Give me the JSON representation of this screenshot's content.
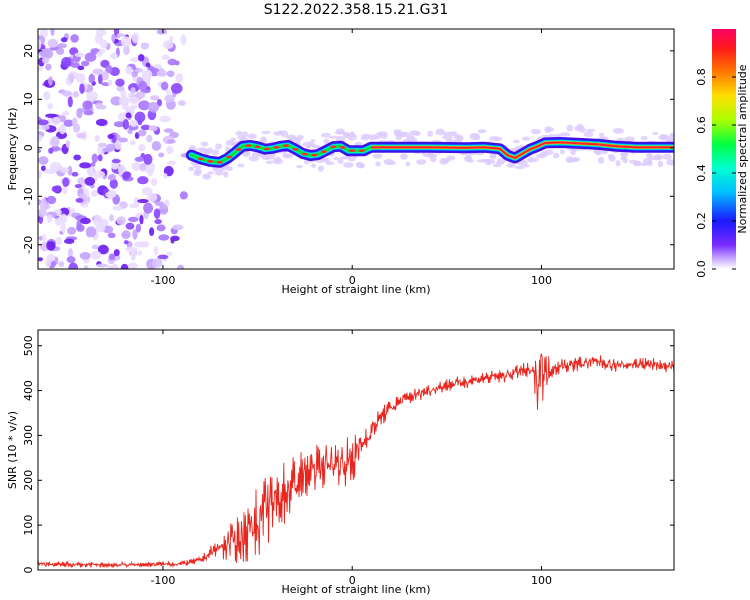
{
  "title": "S122.2022.358.15.21.G31",
  "chart_data": [
    {
      "type": "heatmap",
      "title": "S122.2022.358.15.21.G31",
      "xlabel": "Height of straight line (km)",
      "ylabel": "Frequency (Hz)",
      "xlim": [
        -166,
        170
      ],
      "ylim": [
        -25,
        24.5
      ],
      "x_ticks": [
        "-100",
        "0",
        "100"
      ],
      "x_tick_values": [
        -100,
        0,
        100
      ],
      "y_ticks": [
        "-20",
        "-10",
        "0",
        "10",
        "20"
      ],
      "y_tick_values": [
        -20,
        -10,
        0,
        10,
        20
      ],
      "colorbar": {
        "label": "Normalized spectral amplitude",
        "range": [
          0,
          1
        ],
        "ticks": [
          "0.0",
          "0.2",
          "0.4",
          "0.6",
          "0.8"
        ],
        "tick_values": [
          0.0,
          0.2,
          0.4,
          0.6,
          0.8
        ],
        "colormap": "gist_rainbow_r"
      },
      "noise_region_x": [
        -166,
        -85
      ],
      "ridge": {
        "x": [
          -85,
          -80,
          -75,
          -70,
          -66,
          -62,
          -58,
          -54,
          -50,
          -46,
          -42,
          -38,
          -34,
          -30,
          -26,
          -22,
          -18,
          -14,
          -10,
          -6,
          -2,
          2,
          6,
          10,
          20,
          40,
          60,
          70,
          78,
          82,
          86,
          90,
          94,
          98,
          102,
          110,
          120,
          130,
          140,
          150,
          160,
          170
        ],
        "y": [
          -1.5,
          -2.3,
          -2.8,
          -3.0,
          -2.2,
          -1.0,
          0.3,
          0.5,
          0.2,
          -0.3,
          -0.1,
          0.3,
          0.5,
          -0.3,
          -1.2,
          -1.6,
          -1.4,
          -0.6,
          0.2,
          0.3,
          -0.6,
          -0.6,
          -0.6,
          0.1,
          0.1,
          0.1,
          0.0,
          0.1,
          -0.2,
          -1.5,
          -2.1,
          -1.2,
          -0.3,
          0.3,
          1.0,
          1.1,
          0.9,
          0.7,
          0.3,
          0.1,
          0.1,
          0.1
        ],
        "peak_x_start": 10
      }
    },
    {
      "type": "line",
      "xlabel": "Height of straight line (km)",
      "ylabel": "SNR (10 * v/v)",
      "xlim": [
        -166,
        170
      ],
      "ylim": [
        0,
        535
      ],
      "x_ticks": [
        "-100",
        "0",
        "100"
      ],
      "x_tick_values": [
        -100,
        0,
        100
      ],
      "y_ticks": [
        "0",
        "100",
        "200",
        "300",
        "400",
        "500"
      ],
      "y_tick_values": [
        0,
        100,
        200,
        300,
        400,
        500
      ],
      "series": [
        {
          "color": "#e8261e",
          "x": [
            -166,
            -150,
            -130,
            -110,
            -100,
            -90,
            -80,
            -75,
            -70,
            -65,
            -60,
            -55,
            -50,
            -45,
            -40,
            -35,
            -30,
            -25,
            -20,
            -15,
            -10,
            -5,
            0,
            5,
            10,
            15,
            20,
            25,
            30,
            40,
            50,
            60,
            70,
            80,
            90,
            95,
            98,
            100,
            102,
            105,
            110,
            120,
            130,
            140,
            150,
            160,
            170
          ],
          "y": [
            13,
            12,
            11,
            12,
            13,
            14,
            22,
            38,
            50,
            58,
            70,
            88,
            110,
            135,
            155,
            175,
            195,
            210,
            225,
            235,
            240,
            238,
            245,
            280,
            310,
            340,
            360,
            375,
            385,
            400,
            412,
            420,
            428,
            432,
            445,
            440,
            420,
            470,
            430,
            450,
            455,
            460,
            465,
            455,
            460,
            458,
            452
          ],
          "noise_amplitude": [
            8,
            8,
            8,
            8,
            8,
            8,
            10,
            20,
            35,
            55,
            75,
            95,
            110,
            110,
            100,
            95,
            90,
            80,
            70,
            70,
            65,
            70,
            80,
            50,
            35,
            30,
            25,
            25,
            22,
            20,
            20,
            20,
            20,
            20,
            22,
            30,
            90,
            120,
            80,
            30,
            25,
            22,
            20,
            20,
            20,
            20,
            20
          ]
        }
      ]
    }
  ]
}
